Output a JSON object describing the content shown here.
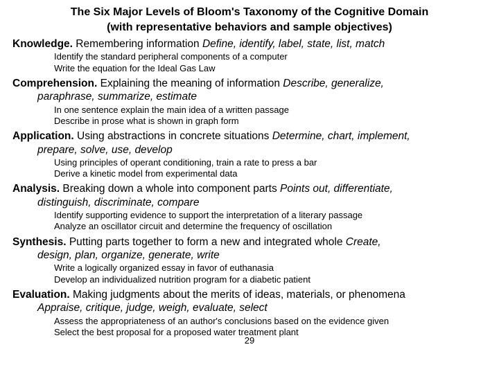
{
  "title_line1": "The Six Major Levels of Bloom's Taxonomy of the Cognitive Domain",
  "title_line2": "(with representative behaviors and sample objectives)",
  "levels": [
    {
      "name": "Knowledge.",
      "desc": " Remembering information ",
      "verbs": "Define, identify, label, state, list, match",
      "verbs_cont": "",
      "ex1": "Identify the standard peripheral components of a computer",
      "ex2": "Write the equation for the Ideal Gas Law"
    },
    {
      "name": "Comprehension.",
      "desc": " Explaining the meaning of information ",
      "verbs": "Describe, generalize,",
      "verbs_cont": "paraphrase, summarize, estimate",
      "ex1": "In one sentence explain the main idea of a written passage",
      "ex2": "Describe in prose what is shown in graph form"
    },
    {
      "name": "Application.",
      "desc": " Using abstractions in concrete situations ",
      "verbs": "Determine, chart, implement,",
      "verbs_cont": "prepare, solve, use, develop",
      "ex1": "Using principles of operant conditioning, train a rate to press a bar",
      "ex2": "Derive a kinetic model from experimental data"
    },
    {
      "name": "Analysis.",
      "desc": " Breaking down a whole into component parts ",
      "verbs": "Points out, differentiate,",
      "verbs_cont": "distinguish, discriminate, compare",
      "ex1": "Identify supporting evidence to support the interpretation of a literary passage",
      "ex2": "Analyze an oscillator circuit and determine the frequency of oscillation"
    },
    {
      "name": "Synthesis.",
      "desc": " Putting parts together to form a new and integrated whole ",
      "verbs": "Create,",
      "verbs_cont": "design, plan, organize, generate, write",
      "ex1": "Write a logically organized essay in favor of euthanasia",
      "ex2": "Develop an individualized nutrition program for a diabetic patient"
    },
    {
      "name": "Evaluation.",
      "desc": " Making judgments about the merits of ideas, materials, or phenomena",
      "verbs": "",
      "verbs_cont": "Appraise, critique, judge, weigh, evaluate, select",
      "ex1": "Assess the appropriateness of an author's conclusions based on the evidence given",
      "ex2": "Select the best proposal for a proposed water treatment plant"
    }
  ],
  "page_number": "29"
}
